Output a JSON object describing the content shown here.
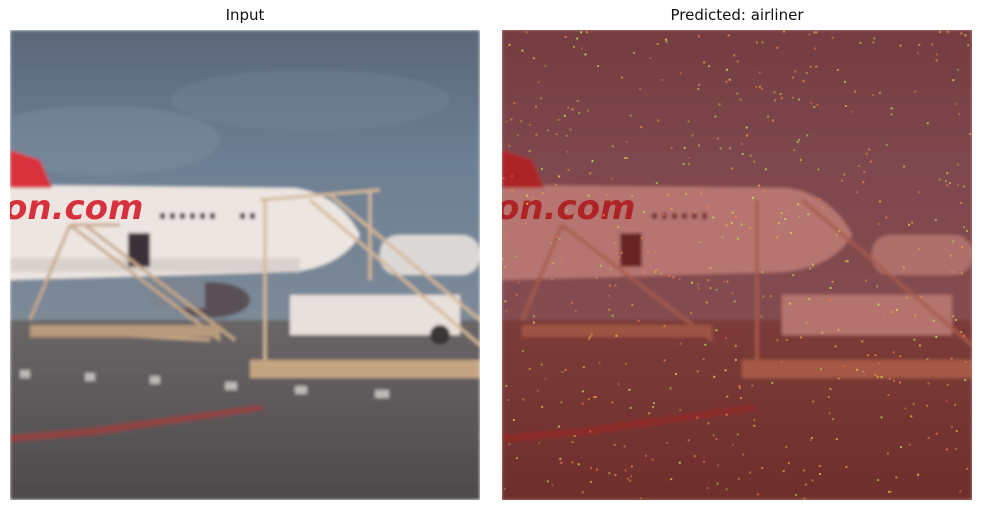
{
  "panels": [
    {
      "title": "Input"
    },
    {
      "title": "Predicted: airliner"
    }
  ],
  "photo": {
    "fuselage_text": "on.com"
  },
  "colors": {
    "sky_top": "#5a6a80",
    "sky_bottom": "#6f8296",
    "tarmac": "#5e5b5c",
    "fuselage": "#ece6e2",
    "livery_red": "#d8303c",
    "stairs": "#b89a7c",
    "overlay_red": "#8a1a14"
  }
}
